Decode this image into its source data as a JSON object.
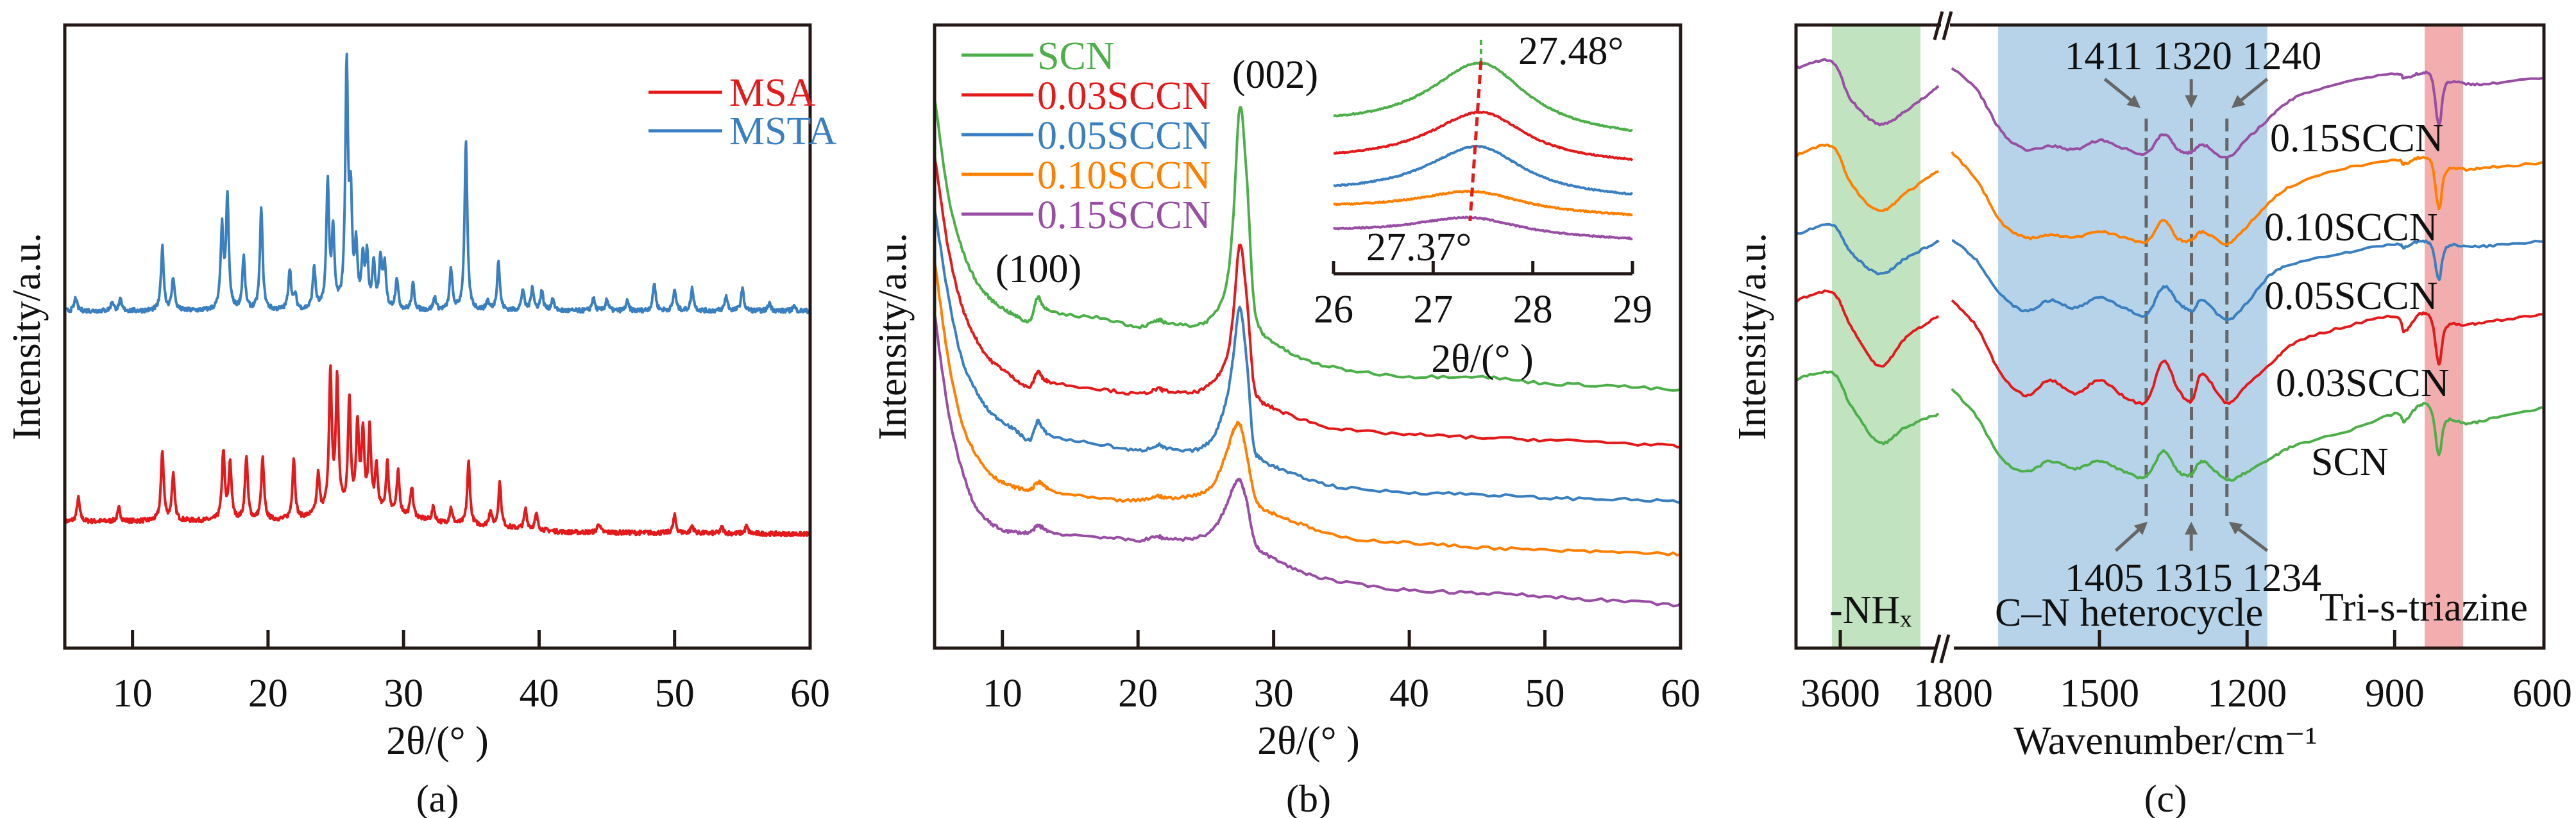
{
  "colors": {
    "red": "#e31a1c",
    "blue": "#3a7fbf",
    "green": "#4daf4a",
    "orange": "#ff7f00",
    "purple": "#984ea3",
    "gray": "#666666",
    "band_green": "#c2e3bf",
    "band_blue": "#b6d3e9",
    "band_red": "#f2aeae"
  },
  "chart_data": [
    {
      "type": "line",
      "caption": "(a)",
      "xlabel": "2θ/(° )",
      "ylabel": "Intensity/a.u.",
      "xlim": [
        5,
        60
      ],
      "xticks": [
        10,
        20,
        30,
        40,
        50,
        60
      ],
      "ylim": [
        0,
        100
      ],
      "legend": "top-right",
      "peak_hwhm": 0.12,
      "series": [
        {
          "name": "MSA",
          "color": "#e31a1c",
          "baseline": [
            [
              5,
              20.3
            ],
            [
              22,
              20.5
            ],
            [
              25,
              22
            ],
            [
              29,
              21.5
            ],
            [
              33,
              20
            ],
            [
              42,
              18.6
            ],
            [
              60,
              18.3
            ]
          ],
          "peaks": [
            [
              6.0,
              3.8
            ],
            [
              9.0,
              2.1
            ],
            [
              12.2,
              11.3
            ],
            [
              13.0,
              7.4
            ],
            [
              16.7,
              11
            ],
            [
              17.2,
              9.2
            ],
            [
              18.4,
              10.2
            ],
            [
              19.6,
              9.9
            ],
            [
              21.9,
              9.9
            ],
            [
              23.7,
              6.3
            ],
            [
              24.6,
              22.2
            ],
            [
              25.1,
              20.7
            ],
            [
              26.0,
              17.8
            ],
            [
              26.6,
              13.5
            ],
            [
              27.0,
              12.3
            ],
            [
              27.5,
              12.8
            ],
            [
              28.0,
              7.2
            ],
            [
              28.8,
              8
            ],
            [
              29.6,
              6.8
            ],
            [
              30.6,
              4.9
            ],
            [
              32.2,
              2.3
            ],
            [
              33.5,
              2.5
            ],
            [
              34.8,
              10.2
            ],
            [
              36.4,
              2.5
            ],
            [
              37.1,
              7.2
            ],
            [
              39.0,
              3.2
            ],
            [
              39.8,
              2.5
            ],
            [
              44.4,
              1.5
            ],
            [
              50.0,
              2.8
            ],
            [
              51.3,
              1.2
            ],
            [
              53.5,
              1
            ],
            [
              55.3,
              1.2
            ]
          ]
        },
        {
          "name": "MSTA",
          "color": "#3a7fbf",
          "baseline": [
            [
              5,
              54.1
            ],
            [
              60,
              54.1
            ]
          ],
          "peaks": [
            [
              5.8,
              2.1
            ],
            [
              8.5,
              1.5
            ],
            [
              9.1,
              1.7
            ],
            [
              12.2,
              10.2
            ],
            [
              13.0,
              5.3
            ],
            [
              16.6,
              12.9
            ],
            [
              17.0,
              17.9
            ],
            [
              18.2,
              8.5
            ],
            [
              19.5,
              16.3
            ],
            [
              21.6,
              6.6
            ],
            [
              22.0,
              2.3
            ],
            [
              23.4,
              6.8
            ],
            [
              24.4,
              20.1
            ],
            [
              24.8,
              11.8
            ],
            [
              25.8,
              38.5
            ],
            [
              26.1,
              16
            ],
            [
              26.5,
              9.3
            ],
            [
              27.0,
              7.6
            ],
            [
              27.3,
              8
            ],
            [
              27.8,
              7.2
            ],
            [
              28.3,
              7.9
            ],
            [
              28.6,
              6.8
            ],
            [
              29.5,
              5.1
            ],
            [
              30.7,
              4.2
            ],
            [
              32.3,
              2.1
            ],
            [
              33.5,
              6.6
            ],
            [
              34.6,
              26.9
            ],
            [
              36.2,
              1.5
            ],
            [
              37.0,
              7.9
            ],
            [
              38.8,
              3.4
            ],
            [
              39.5,
              3.8
            ],
            [
              40.2,
              3.2
            ],
            [
              41.0,
              1.9
            ],
            [
              44.0,
              2.1
            ],
            [
              45.0,
              1.9
            ],
            [
              46.5,
              1.5
            ],
            [
              48.5,
              4.5
            ],
            [
              50.0,
              3.4
            ],
            [
              51.3,
              3.6
            ],
            [
              53.8,
              2.4
            ],
            [
              55.0,
              3.6
            ],
            [
              57.0,
              1.3
            ],
            [
              58.8,
              0.8
            ]
          ]
        }
      ]
    },
    {
      "type": "line",
      "caption": "(b)",
      "xlabel": "2θ/(° )",
      "ylabel": "Intensity/a.u.",
      "xlim": [
        5,
        60
      ],
      "xticks": [
        10,
        20,
        30,
        40,
        50,
        60
      ],
      "ylim": [
        0,
        100
      ],
      "legend": "top-left",
      "annotations": {
        "peak_100": "(100)",
        "peak_002": "(002)"
      },
      "x": [
        5,
        6,
        7,
        8,
        9,
        10,
        11,
        12,
        12.6,
        13,
        14,
        17.5,
        20,
        21.5,
        22,
        24,
        25.5,
        26.5,
        27,
        27.5,
        28,
        28.5,
        29,
        30,
        32,
        35,
        40,
        45,
        50,
        55,
        60
      ],
      "series": [
        {
          "name": "SCN",
          "color": "#4daf4a",
          "values": [
            88.4,
            72.8,
            64.3,
            59.2,
            56.3,
            54.6,
            53.3,
            52.6,
            56.3,
            55,
            53.7,
            52.9,
            51.6,
            52.6,
            52.3,
            51.8,
            53.3,
            58.4,
            68.5,
            86.7,
            76.1,
            56.7,
            51.2,
            49.1,
            46.5,
            44.8,
            43.6,
            43.6,
            42.5,
            42.1,
            41.3
          ]
        },
        {
          "name": "0.03SCCN",
          "color": "#e31a1c",
          "values": [
            79.1,
            64.3,
            55,
            49.9,
            46.5,
            44.8,
            43.1,
            41.9,
            44.4,
            43.3,
            42.5,
            41.5,
            40.8,
            41.6,
            41.3,
            41,
            42.7,
            46.5,
            53.3,
            64.7,
            56.7,
            43.1,
            39.8,
            38.5,
            36.8,
            35.1,
            34.3,
            33.8,
            33.4,
            33,
            32.3
          ]
        },
        {
          "name": "0.05SCCN",
          "color": "#3a7fbf",
          "values": [
            70.6,
            56.7,
            46.5,
            41.5,
            38.1,
            36.4,
            34.9,
            33.4,
            36.4,
            35.1,
            33.8,
            32.6,
            31.7,
            32.6,
            32.1,
            31.7,
            33.8,
            39.8,
            46.5,
            54.6,
            46.5,
            33,
            30.5,
            29.2,
            27.5,
            25.8,
            25,
            24.7,
            24.1,
            23.9,
            23.5
          ]
        },
        {
          "name": "0.10SCCN",
          "color": "#ff7f00",
          "values": [
            62.2,
            46.5,
            36.4,
            31.3,
            28.3,
            26.6,
            25.8,
            25.4,
            26.6,
            26.2,
            25,
            23.9,
            23.7,
            24.4,
            24.1,
            24.5,
            26.2,
            31.3,
            34.7,
            36,
            31.3,
            25.4,
            22.8,
            21.6,
            19.9,
            17.8,
            16.9,
            16.2,
            15.7,
            15.4,
            15.1
          ]
        },
        {
          "name": "0.15SCCN",
          "color": "#984ea3",
          "values": [
            53.7,
            38.1,
            28.8,
            22.8,
            20.3,
            19,
            18.6,
            18.6,
            19.6,
            19.3,
            18.4,
            17.8,
            17.3,
            17.9,
            17.6,
            17.6,
            19,
            22.8,
            25.8,
            26.9,
            23.7,
            17.8,
            15.7,
            14.4,
            12.3,
            10.6,
            9.3,
            8.9,
            8.3,
            7.6,
            6.9
          ]
        }
      ],
      "inset": {
        "type": "line",
        "xlabel": "2θ/(° )",
        "xlim": [
          26,
          29
        ],
        "xticks": [
          26,
          27,
          28,
          29
        ],
        "ylim": [
          0,
          100
        ],
        "peak_high_label": "27.48°",
        "peak_low_label": "27.37°",
        "peak_high": 27.48,
        "peak_low": 27.37,
        "series": [
          {
            "name": "SCN",
            "color": "#4daf4a",
            "center": 27.48,
            "amplitude": 28,
            "hwhm": 0.55,
            "base": [
              62.4,
              57.7
            ]
          },
          {
            "name": "0.03SCCN",
            "color": "#e31a1c",
            "center": 27.48,
            "amplitude": 20.5,
            "hwhm": 0.55,
            "base": [
              47.7,
              46.1
            ]
          },
          {
            "name": "0.05SCCN",
            "color": "#3a7fbf",
            "center": 27.45,
            "amplitude": 20.2,
            "hwhm": 0.55,
            "base": [
              34.5,
              32.2
            ]
          },
          {
            "name": "0.10SCCN",
            "color": "#ff7f00",
            "center": 27.4,
            "amplitude": 8.5,
            "hwhm": 0.6,
            "base": [
              27.3,
              23.7
            ]
          },
          {
            "name": "0.15SCCN",
            "color": "#984ea3",
            "center": 27.37,
            "amplitude": 7.5,
            "hwhm": 0.6,
            "base": [
              17.5,
              14.2
            ]
          }
        ]
      }
    },
    {
      "type": "line",
      "caption": "(c)",
      "xlabel": "Wavenumber/cm⁻¹",
      "ylabel": "Intensity/a.u.",
      "xlim_left": [
        3690,
        3400
      ],
      "xlim_right": [
        1800,
        600
      ],
      "axis_break": true,
      "xticks": [
        3600,
        1800,
        1500,
        1200,
        900,
        600
      ],
      "ylim": [
        0,
        100
      ],
      "bands": [
        {
          "label": "-NHₓ",
          "range": [
            3617,
            3437
          ],
          "color": "#c2e3bf",
          "text_color": "#4daf4a"
        },
        {
          "label": "C–N heterocycle",
          "range": [
            1706,
            1159
          ],
          "color": "#b6d3e9",
          "text_color": "#3a7fbf"
        },
        {
          "label": "Tri-s-triazine",
          "range": [
            839,
            761
          ],
          "color": "#f2aeae",
          "text_color": "#e31a1c"
        }
      ],
      "marker_lines": [
        1405,
        1313,
        1241
      ],
      "top_labels": "1411 1320 1240",
      "bottom_labels": "1405 1315 1234",
      "x_left": [
        3690,
        3617,
        3578,
        3520,
        3466,
        3400
      ],
      "x_right": [
        1800,
        1750,
        1700,
        1650,
        1600,
        1550,
        1500,
        1450,
        1405,
        1370,
        1340,
        1313,
        1290,
        1241,
        1200,
        1150,
        1100,
        1000,
        900,
        880,
        850,
        825,
        810,
        795,
        750,
        700,
        600
      ],
      "series": [
        {
          "name": "0.15SCCN",
          "color": "#984ea3",
          "left": [
            93.1,
            94.1,
            88.0,
            84.1,
            86.3,
            90.1
          ],
          "right": [
            93.1,
            89.7,
            83.0,
            80.0,
            80.6,
            80.0,
            81.5,
            80.2,
            79.4,
            82.5,
            80.0,
            79.6,
            80.8,
            78.7,
            81.7,
            85.4,
            88.4,
            90.9,
            92.2,
            91.5,
            92.2,
            91.5,
            84.0,
            90.5,
            90.5,
            90.7,
            91.5
          ]
        },
        {
          "name": "0.10SCCN",
          "color": "#ff7f00",
          "left": [
            79.1,
            80.5,
            74.5,
            70.2,
            73.1,
            76.6
          ],
          "right": [
            79.5,
            75.2,
            68.4,
            65.9,
            66.3,
            65.9,
            66.9,
            65.9,
            65.2,
            68.6,
            65.7,
            65.5,
            66.8,
            64.9,
            67.7,
            71.9,
            74.5,
            77.0,
            78.3,
            77.7,
            78.7,
            77.8,
            70.6,
            76.5,
            76.8,
            77.2,
            77.8
          ]
        },
        {
          "name": "0.05SCCN",
          "color": "#3a7fbf",
          "left": [
            66.4,
            67.9,
            63.5,
            60.1,
            62.6,
            65.3
          ],
          "right": [
            65.5,
            62.2,
            56.7,
            54.1,
            55.8,
            54.6,
            56.3,
            54.6,
            53.5,
            58.0,
            55.5,
            54.1,
            55.8,
            52.6,
            55.5,
            60.1,
            61.8,
            63.5,
            64.8,
            64.3,
            65.3,
            64.5,
            59.2,
            64.3,
            64.4,
            64.6,
            65.3
          ]
        },
        {
          "name": "0.03SCCN",
          "color": "#e31a1c",
          "left": [
            55.8,
            57.1,
            51.6,
            45.3,
            49.9,
            53.3
          ],
          "right": [
            55.8,
            51.6,
            44.0,
            40.6,
            43.0,
            40.8,
            43.0,
            40.4,
            39.6,
            46.1,
            41.5,
            39.6,
            44.0,
            39.3,
            42.3,
            45.7,
            49.1,
            51.6,
            53.3,
            50.8,
            53.6,
            52.5,
            45.7,
            51.5,
            51.9,
            52.5,
            53.6
          ]
        },
        {
          "name": "SCN",
          "color": "#4daf4a",
          "left": [
            43.1,
            44.2,
            38.9,
            33.0,
            35.5,
            37.6
          ],
          "right": [
            41.5,
            37.2,
            30.5,
            28.3,
            30.0,
            28.8,
            30.0,
            28.3,
            27.5,
            31.7,
            28.3,
            27.9,
            30.0,
            27.0,
            28.3,
            30.5,
            32.6,
            34.7,
            37.6,
            36.4,
            39.0,
            38.0,
            31.1,
            36.4,
            36.0,
            36.9,
            38.6
          ]
        }
      ]
    }
  ]
}
